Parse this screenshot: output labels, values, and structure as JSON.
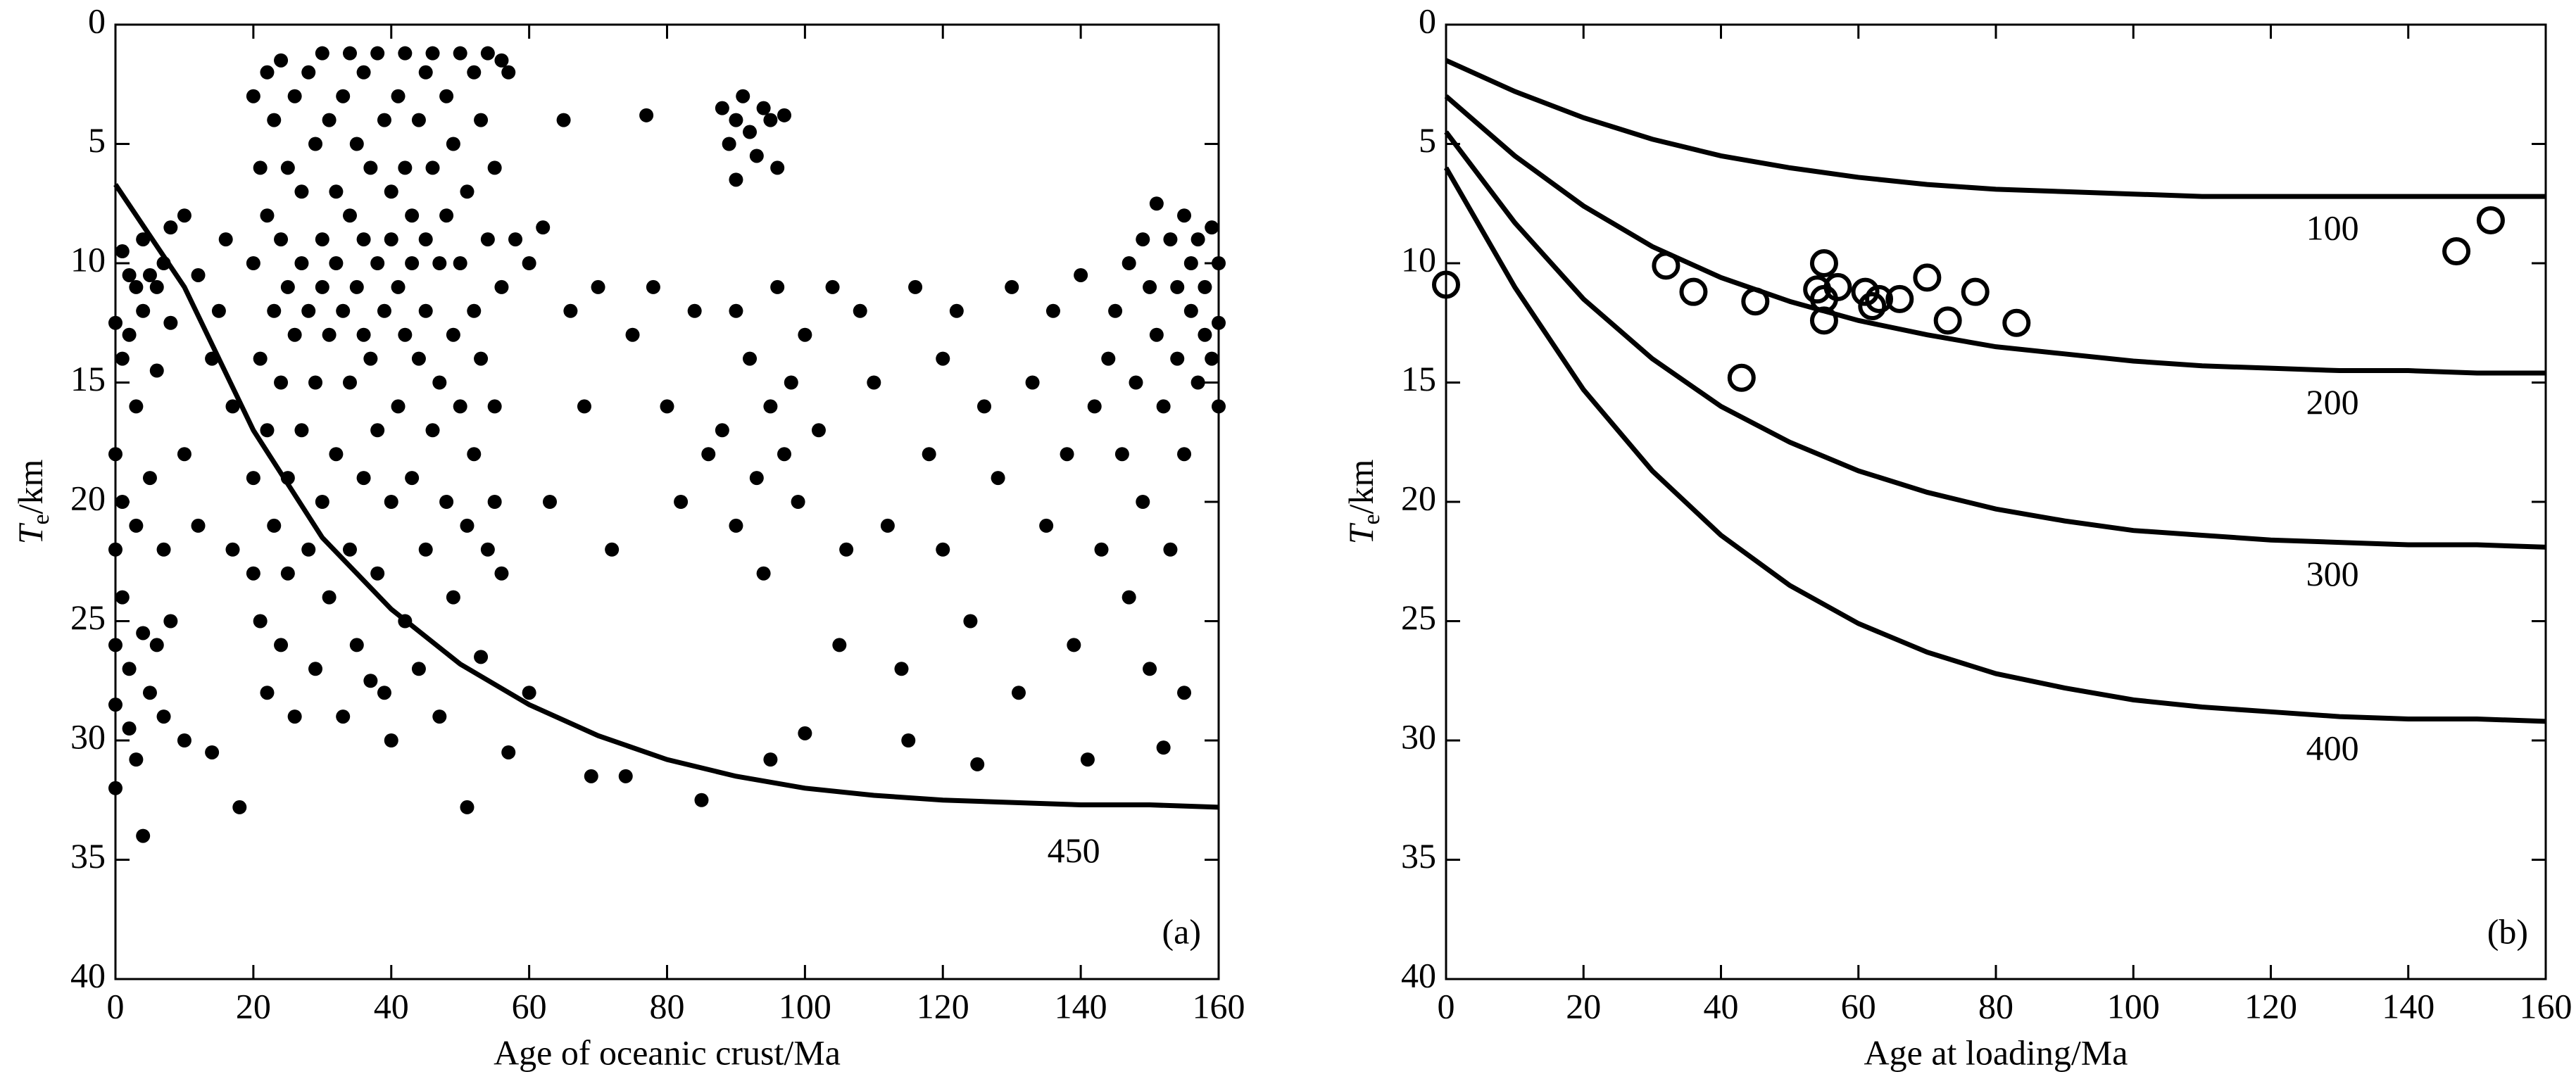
{
  "chart_data": [
    {
      "type": "scatter",
      "xlabel": "Age of oceanic crust/Ma",
      "ylabel": {
        "symbol": "T",
        "subscript": "e",
        "unit": "/km"
      },
      "panel_label": "(a)",
      "xlim": [
        0,
        160
      ],
      "xticks": [
        0,
        20,
        40,
        60,
        80,
        100,
        120,
        140,
        160
      ],
      "ylim": [
        0,
        40
      ],
      "yticks": [
        0,
        5,
        10,
        15,
        20,
        25,
        30,
        35,
        40
      ],
      "y_inverted": true,
      "points": {
        "marker": "filled",
        "color": "#000000",
        "x": [
          0,
          0,
          0,
          0,
          0,
          0,
          1,
          1,
          1,
          1,
          2,
          2,
          2,
          2,
          3,
          3,
          3,
          3,
          4,
          4,
          4,
          4,
          5,
          5,
          5,
          6,
          6,
          6,
          7,
          7,
          7,
          8,
          8,
          8,
          10,
          10,
          10,
          12,
          12,
          14,
          14,
          15,
          16,
          17,
          17,
          18,
          20,
          20,
          20,
          20,
          21,
          21,
          21,
          22,
          22,
          22,
          22,
          23,
          23,
          23,
          24,
          24,
          24,
          24,
          25,
          25,
          25,
          25,
          26,
          26,
          26,
          27,
          27,
          27,
          28,
          28,
          28,
          29,
          29,
          29,
          30,
          30,
          30,
          30,
          31,
          31,
          31,
          32,
          32,
          32,
          33,
          33,
          33,
          34,
          34,
          34,
          34,
          35,
          35,
          35,
          36,
          36,
          36,
          36,
          37,
          37,
          37,
          38,
          38,
          38,
          38,
          39,
          39,
          39,
          40,
          40,
          40,
          40,
          41,
          41,
          41,
          42,
          42,
          42,
          42,
          43,
          43,
          43,
          44,
          44,
          44,
          45,
          45,
          45,
          45,
          46,
          46,
          46,
          47,
          47,
          47,
          48,
          48,
          48,
          49,
          49,
          49,
          50,
          50,
          50,
          51,
          51,
          51,
          52,
          52,
          52,
          53,
          53,
          53,
          54,
          54,
          54,
          55,
          55,
          55,
          56,
          56,
          56,
          57,
          57,
          58,
          60,
          60,
          62,
          63,
          65,
          66,
          68,
          69,
          70,
          72,
          74,
          75,
          77,
          78,
          80,
          82,
          84,
          85,
          86,
          88,
          89,
          90,
          90,
          91,
          92,
          93,
          94,
          95,
          96,
          97,
          88,
          90,
          90,
          92,
          93,
          94,
          95,
          95,
          96,
          97,
          98,
          99,
          100,
          100,
          102,
          104,
          105,
          106,
          108,
          110,
          112,
          114,
          115,
          116,
          118,
          120,
          120,
          122,
          124,
          125,
          126,
          128,
          130,
          131,
          133,
          135,
          136,
          138,
          139,
          140,
          141,
          142,
          143,
          144,
          145,
          146,
          147,
          147,
          148,
          149,
          149,
          150,
          150,
          151,
          151,
          152,
          152,
          153,
          153,
          154,
          154,
          155,
          155,
          155,
          156,
          156,
          157,
          157,
          158,
          158,
          159,
          159,
          160,
          160,
          160
        ],
        "values": [
          12.5,
          18,
          22,
          26,
          28.5,
          32,
          9.5,
          14,
          20,
          24,
          10.5,
          13,
          27,
          29.5,
          11,
          16,
          21,
          30.8,
          9,
          12,
          34,
          25.5,
          10.5,
          19,
          28,
          11,
          14.5,
          26,
          10,
          22,
          29,
          8.5,
          12.5,
          25,
          8,
          18,
          30,
          10.5,
          21,
          14,
          30.5,
          12,
          9,
          16,
          22,
          32.8,
          3,
          10,
          19,
          23,
          6,
          14,
          25,
          2,
          8,
          17,
          28,
          4,
          12,
          21,
          1.5,
          9,
          15,
          26,
          6,
          11,
          19,
          23,
          3,
          13,
          29,
          7,
          10,
          17,
          2,
          12,
          22,
          5,
          15,
          27,
          1.2,
          9,
          11,
          20,
          4,
          13,
          24,
          7,
          10,
          18,
          3,
          12,
          29,
          1.2,
          8,
          15,
          22,
          5,
          11,
          26,
          2,
          9,
          13,
          19,
          6,
          14,
          27.5,
          1.2,
          10,
          17,
          23,
          4,
          12,
          28,
          7,
          9,
          20,
          30,
          3,
          11,
          16,
          1.2,
          6,
          13,
          25,
          8,
          10,
          19,
          4,
          14,
          27,
          2,
          9,
          12,
          22,
          1.2,
          6,
          17,
          10,
          15,
          29,
          3,
          8,
          20,
          5,
          13,
          24,
          1.2,
          10,
          16,
          7,
          21,
          32.8,
          2,
          12,
          18,
          4,
          14,
          26.5,
          1.2,
          9,
          22,
          6,
          16,
          20,
          1.5,
          11,
          23,
          2,
          30.5,
          9,
          10,
          28,
          8.5,
          20,
          4,
          12,
          16,
          31.5,
          11,
          22,
          31.5,
          13,
          3.8,
          11,
          16,
          20,
          12,
          32.5,
          18,
          3.5,
          5,
          4,
          6.5,
          3,
          4.5,
          5.5,
          3.5,
          4,
          6,
          3.8,
          17,
          12,
          21,
          14,
          19,
          23,
          16,
          30.8,
          11,
          18,
          15,
          20,
          13,
          29.7,
          17,
          11,
          26,
          22,
          12,
          15,
          21,
          27,
          30,
          11,
          18,
          14,
          22,
          12,
          25,
          31,
          16,
          19,
          11,
          28,
          15,
          21,
          12,
          18,
          26,
          10.5,
          30.8,
          16,
          22,
          14,
          12,
          18,
          10,
          24,
          15,
          9,
          20,
          11,
          27,
          7.5,
          13,
          16,
          30.3,
          9,
          22,
          11,
          14,
          8,
          18,
          28,
          10,
          12,
          9,
          15,
          11,
          13,
          8.5,
          14,
          10,
          12.5,
          16
        ]
      },
      "curve_x": [
        0,
        10,
        20,
        30,
        40,
        50,
        60,
        70,
        80,
        90,
        100,
        110,
        120,
        130,
        140,
        150,
        160
      ],
      "curves": [
        {
          "name": "450",
          "color": "#000000",
          "values": [
            6.7,
            11,
            17,
            21.5,
            24.5,
            26.8,
            28.5,
            29.8,
            30.8,
            31.5,
            32,
            32.3,
            32.5,
            32.6,
            32.7,
            32.7,
            32.8
          ]
        }
      ]
    },
    {
      "type": "scatter",
      "xlabel": "Age at loading/Ma",
      "ylabel": {
        "symbol": "T",
        "subscript": "e",
        "unit": "/km"
      },
      "panel_label": "(b)",
      "xlim": [
        0,
        160
      ],
      "xticks": [
        0,
        20,
        40,
        60,
        80,
        100,
        120,
        140,
        160
      ],
      "ylim": [
        0,
        40
      ],
      "yticks": [
        0,
        5,
        10,
        15,
        20,
        25,
        30,
        35,
        40
      ],
      "y_inverted": true,
      "points": {
        "marker": "open",
        "color": "#000000",
        "x": [
          0,
          32,
          36,
          43,
          45,
          54,
          55,
          55,
          55,
          57,
          61,
          62,
          63,
          66,
          70,
          73,
          77,
          83,
          147,
          152
        ],
        "values": [
          10.9,
          10.1,
          11.2,
          14.8,
          11.6,
          11.1,
          10,
          11.5,
          12.4,
          11,
          11.2,
          11.8,
          11.5,
          11.5,
          10.6,
          12.4,
          11.2,
          12.5,
          9.5,
          8.2
        ]
      },
      "curve_x": [
        0,
        10,
        20,
        30,
        40,
        50,
        60,
        70,
        80,
        90,
        100,
        110,
        120,
        130,
        140,
        150,
        160
      ],
      "curves": [
        {
          "name": "100",
          "color": "#000000",
          "values": [
            1.5,
            2.8,
            3.9,
            4.8,
            5.5,
            6,
            6.4,
            6.7,
            6.9,
            7,
            7.1,
            7.2,
            7.2,
            7.2,
            7.2,
            7.2,
            7.2
          ]
        },
        {
          "name": "200",
          "color": "#000000",
          "values": [
            3,
            5.5,
            7.6,
            9.3,
            10.6,
            11.6,
            12.4,
            13,
            13.5,
            13.8,
            14.1,
            14.3,
            14.4,
            14.5,
            14.5,
            14.6,
            14.6
          ]
        },
        {
          "name": "300",
          "color": "#000000",
          "values": [
            4.5,
            8.3,
            11.5,
            14,
            16,
            17.5,
            18.7,
            19.6,
            20.3,
            20.8,
            21.2,
            21.4,
            21.6,
            21.7,
            21.8,
            21.8,
            21.9
          ]
        },
        {
          "name": "400",
          "color": "#000000",
          "values": [
            6,
            11,
            15.3,
            18.7,
            21.4,
            23.5,
            25.1,
            26.3,
            27.2,
            27.8,
            28.3,
            28.6,
            28.8,
            29,
            29.1,
            29.1,
            29.2
          ]
        }
      ]
    }
  ]
}
